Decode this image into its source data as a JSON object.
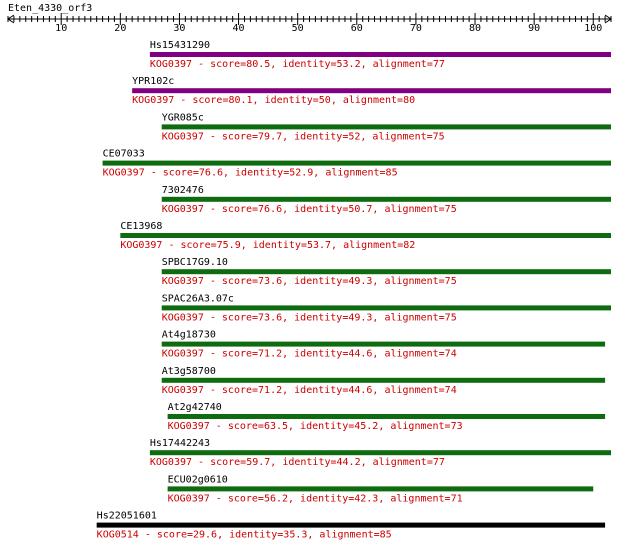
{
  "query": "Eten_4330_orf3",
  "axis": {
    "min": 1,
    "max": 103,
    "major_ticks": [
      10,
      20,
      30,
      40,
      50,
      60,
      70,
      80,
      90,
      100
    ]
  },
  "hits": [
    {
      "name": "Hs15431290",
      "start": 25,
      "end": 103,
      "desc": "KOG0397 - score=80.5, identity=53.2, alignment=77",
      "color": "#800080"
    },
    {
      "name": "YPR102c",
      "start": 22,
      "end": 103,
      "desc": "KOG0397 - score=80.1, identity=50, alignment=80",
      "color": "#800080"
    },
    {
      "name": "YGR085c",
      "start": 27,
      "end": 103,
      "desc": "KOG0397 - score=79.7, identity=52, alignment=75",
      "color": "#0f6b0f"
    },
    {
      "name": "CE07033",
      "start": 17,
      "end": 103,
      "desc": "KOG0397 - score=76.6, identity=52.9, alignment=85",
      "color": "#0f6b0f"
    },
    {
      "name": "7302476",
      "start": 27,
      "end": 103,
      "desc": "KOG0397 - score=76.6, identity=50.7, alignment=75",
      "color": "#0f6b0f"
    },
    {
      "name": "CE13968",
      "start": 20,
      "end": 103,
      "desc": "KOG0397 - score=75.9, identity=53.7, alignment=82",
      "color": "#0f6b0f"
    },
    {
      "name": "SPBC17G9.10",
      "start": 27,
      "end": 103,
      "desc": "KOG0397 - score=73.6, identity=49.3, alignment=75",
      "color": "#0f6b0f"
    },
    {
      "name": "SPAC26A3.07c",
      "start": 27,
      "end": 103,
      "desc": "KOG0397 - score=73.6, identity=49.3, alignment=75",
      "color": "#0f6b0f"
    },
    {
      "name": "At4g18730",
      "start": 27,
      "end": 102,
      "desc": "KOG0397 - score=71.2, identity=44.6, alignment=74",
      "color": "#0f6b0f"
    },
    {
      "name": "At3g58700",
      "start": 27,
      "end": 102,
      "desc": "KOG0397 - score=71.2, identity=44.6, alignment=74",
      "color": "#0f6b0f"
    },
    {
      "name": "At2g42740",
      "start": 28,
      "end": 102,
      "desc": "KOG0397 - score=63.5, identity=45.2, alignment=73",
      "color": "#0f6b0f"
    },
    {
      "name": "Hs17442243",
      "start": 25,
      "end": 103,
      "desc": "KOG0397 - score=59.7, identity=44.2, alignment=77",
      "color": "#0f6b0f"
    },
    {
      "name": "ECU02g0610",
      "start": 28,
      "end": 100,
      "desc": "KOG0397 - score=56.2, identity=42.3, alignment=71",
      "color": "#0f6b0f"
    },
    {
      "name": "Hs22051601",
      "start": 16,
      "end": 102,
      "desc": "KOG0514 - score=29.6, identity=35.3, alignment=85",
      "color": "#000000"
    }
  ]
}
